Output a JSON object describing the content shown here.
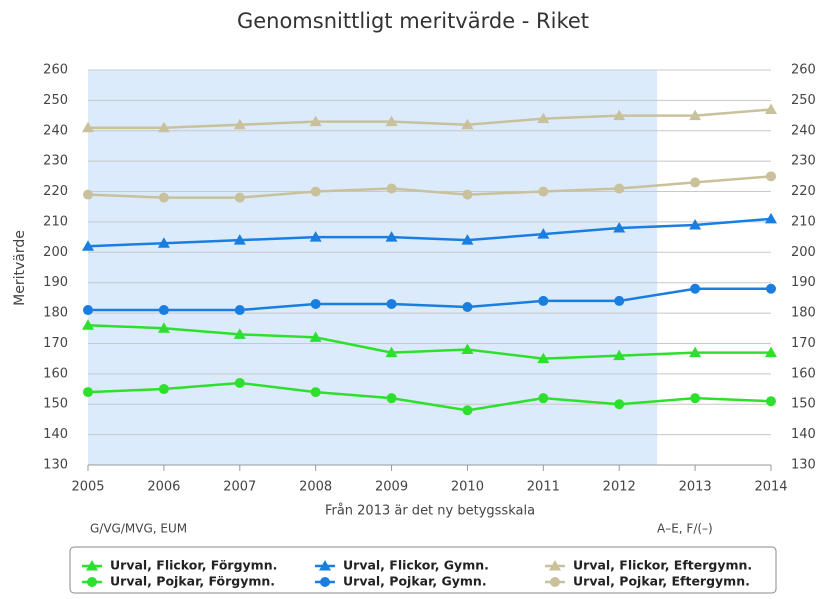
{
  "chart_data": {
    "type": "line",
    "title": "Genomsnittligt meritvärde - Riket",
    "y_label": "Meritvärde",
    "x_label": "Från 2013 är det ny betygsskala",
    "annotations": [
      "G/VG/MVG, EUM",
      "A–E, F/(–)"
    ],
    "x": [
      2005,
      2006,
      2007,
      2008,
      2009,
      2010,
      2011,
      2012,
      2013,
      2014
    ],
    "xlim": [
      2005,
      2014
    ],
    "xticks": [
      2005,
      2006,
      2007,
      2008,
      2009,
      2010,
      2011,
      2012,
      2013,
      2014
    ],
    "ylim": [
      130,
      260
    ],
    "yticks": [
      130,
      140,
      150,
      160,
      170,
      180,
      190,
      200,
      210,
      220,
      230,
      240,
      250,
      260
    ],
    "y2lim": [
      130,
      260
    ],
    "y2ticks": [
      130,
      140,
      150,
      160,
      170,
      180,
      190,
      200,
      210,
      220,
      230,
      240,
      250,
      260
    ],
    "plot_band": {
      "from": 2005,
      "to": 2012.5,
      "color": "#dcebfb"
    },
    "grid": true,
    "legend": "bottom",
    "series": [
      {
        "name": "Urval, Flickor, Förgymn.",
        "color": "#2ee02e",
        "marker": "triangle",
        "values": [
          176,
          175,
          173,
          172,
          167,
          168,
          165,
          166,
          167,
          167
        ]
      },
      {
        "name": "Urval, Pojkar, Förgymn.",
        "color": "#2ee02e",
        "marker": "circle",
        "values": [
          154,
          155,
          157,
          154,
          152,
          148,
          152,
          150,
          152,
          151
        ]
      },
      {
        "name": "Urval, Flickor, Gymn.",
        "color": "#1a7ee0",
        "marker": "triangle",
        "values": [
          202,
          203,
          204,
          205,
          205,
          204,
          206,
          208,
          209,
          211
        ]
      },
      {
        "name": "Urval, Pojkar, Gymn.",
        "color": "#1a7ee0",
        "marker": "circle",
        "values": [
          181,
          181,
          181,
          183,
          183,
          182,
          184,
          184,
          188,
          188
        ]
      },
      {
        "name": "Urval, Flickor, Eftergymn.",
        "color": "#c9c19c",
        "marker": "triangle",
        "values": [
          241,
          241,
          242,
          243,
          243,
          242,
          244,
          245,
          245,
          247
        ]
      },
      {
        "name": "Urval, Pojkar, Eftergymn.",
        "color": "#c9c19c",
        "marker": "circle",
        "values": [
          219,
          218,
          218,
          220,
          221,
          219,
          220,
          221,
          223,
          225
        ]
      }
    ]
  }
}
